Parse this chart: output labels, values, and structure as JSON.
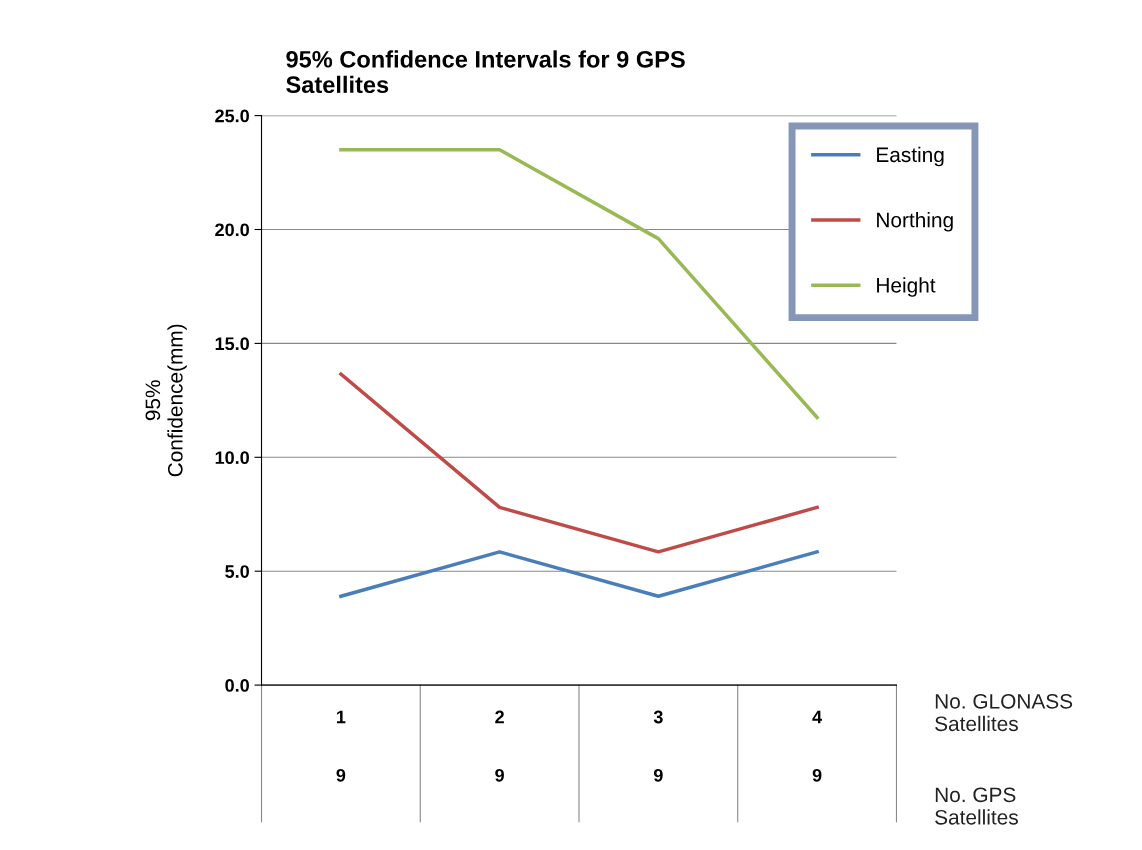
{
  "chart_data": {
    "type": "line",
    "title": "95% Confidence Intervals for 9 GPS\nSatellites",
    "ylabel": "95%\nConfidence(mm)",
    "categories": [
      "1\n\n\n9",
      "2\n\n\n9",
      "3\n\n\n9",
      "4\n\n\n9"
    ],
    "series": [
      {
        "name": "Easting",
        "color": "#4a7ebb",
        "values": [
          3.9,
          5.85,
          3.9,
          5.85
        ]
      },
      {
        "name": "Northing",
        "color": "#be4b48",
        "values": [
          13.65,
          7.8,
          5.85,
          7.8
        ]
      },
      {
        "name": "Height",
        "color": "#98b954",
        "values": [
          23.5,
          23.5,
          19.6,
          11.75
        ]
      }
    ],
    "ylim": [
      0,
      25
    ],
    "yticks": [
      {
        "value": 0,
        "label": "0.0"
      },
      {
        "value": 5,
        "label": "5.0"
      },
      {
        "value": 10,
        "label": "10.0"
      },
      {
        "value": 15,
        "label": "15.0"
      },
      {
        "value": 20,
        "label": "20.0"
      },
      {
        "value": 25,
        "label": "25.0"
      }
    ],
    "grid": "y",
    "legend": "top right",
    "marker": "none",
    "line_style": "solid",
    "annotations": [
      "No. GLONASS\nSatellites",
      "No. GPS\nSatellites"
    ]
  }
}
